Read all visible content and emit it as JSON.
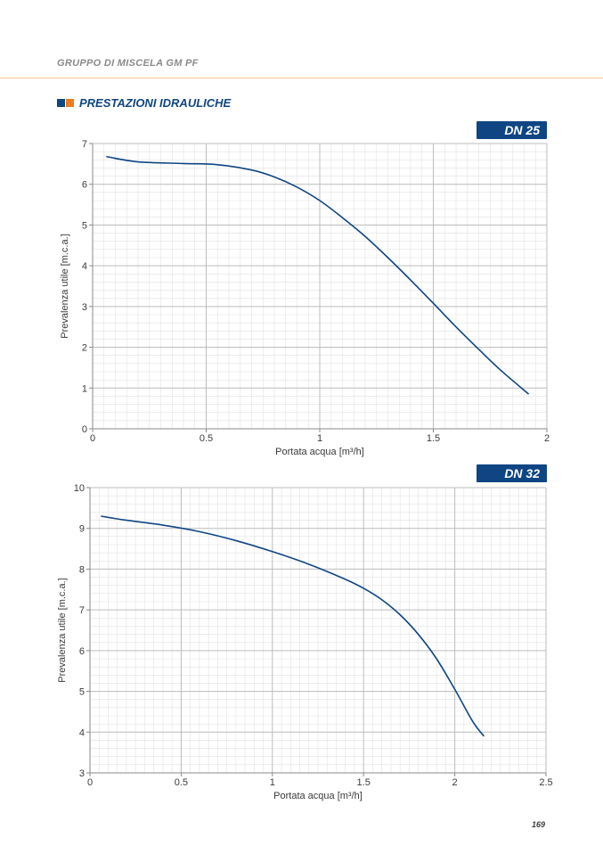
{
  "header": {
    "title": "GRUPPO DI MISCELA GM PF"
  },
  "section": {
    "title": "PRESTAZIONI IDRAULICHE",
    "colors": [
      "#0f4583",
      "#ec7d1e"
    ]
  },
  "page_number": "169",
  "colors": {
    "curve": "#0f4583",
    "badge": "#0f4583",
    "grid_major": "#bdbdbd",
    "grid_minor": "#e2e2e2"
  },
  "chart_data": [
    {
      "type": "line",
      "badge": "DN 25",
      "xlabel": "Portata acqua [m³/h]",
      "ylabel": "Prevalenza utile [m.c.a.]",
      "xlim": [
        0,
        2
      ],
      "ylim": [
        0,
        7
      ],
      "xticks": [
        0,
        0.5,
        1,
        1.5,
        2
      ],
      "xtick_labels": [
        "0",
        "0.5",
        "1",
        "1.5",
        "2"
      ],
      "yticks": [
        0,
        1,
        2,
        3,
        4,
        5,
        6,
        7
      ],
      "ytick_labels": [
        "0",
        "1",
        "2",
        "3",
        "4",
        "5",
        "6",
        "7"
      ],
      "x_minor": 10,
      "y_minor": 5,
      "grid": true,
      "series": [
        {
          "x": [
            0.06,
            0.2,
            0.4,
            0.55,
            0.7,
            0.8,
            0.9,
            1.0,
            1.1,
            1.2,
            1.3,
            1.4,
            1.5,
            1.6,
            1.7,
            1.8,
            1.92
          ],
          "y": [
            6.68,
            6.55,
            6.51,
            6.48,
            6.35,
            6.18,
            5.93,
            5.6,
            5.18,
            4.72,
            4.2,
            3.65,
            3.08,
            2.5,
            1.95,
            1.42,
            0.85
          ]
        }
      ]
    },
    {
      "type": "line",
      "badge": "DN 32",
      "xlabel": "Portata acqua [m³/h]",
      "ylabel": "Prevalenza utile [m.c.a.]",
      "xlim": [
        0,
        2.5
      ],
      "ylim": [
        3,
        10
      ],
      "xticks": [
        0,
        0.5,
        1,
        1.5,
        2,
        2.5
      ],
      "xtick_labels": [
        "0",
        "0.5",
        "1",
        "1.5",
        "2",
        "2.5"
      ],
      "yticks": [
        3,
        4,
        5,
        6,
        7,
        8,
        9,
        10
      ],
      "ytick_labels": [
        "3",
        "4",
        "5",
        "6",
        "7",
        "8",
        "9",
        "10"
      ],
      "x_minor": 10,
      "y_minor": 5,
      "grid": true,
      "series": [
        {
          "x": [
            0.06,
            0.2,
            0.4,
            0.6,
            0.8,
            1.0,
            1.2,
            1.4,
            1.5,
            1.6,
            1.7,
            1.8,
            1.9,
            2.0,
            2.1,
            2.16
          ],
          "y": [
            9.3,
            9.2,
            9.08,
            8.92,
            8.7,
            8.43,
            8.12,
            7.75,
            7.53,
            7.25,
            6.88,
            6.4,
            5.8,
            5.05,
            4.25,
            3.9
          ]
        }
      ]
    }
  ]
}
